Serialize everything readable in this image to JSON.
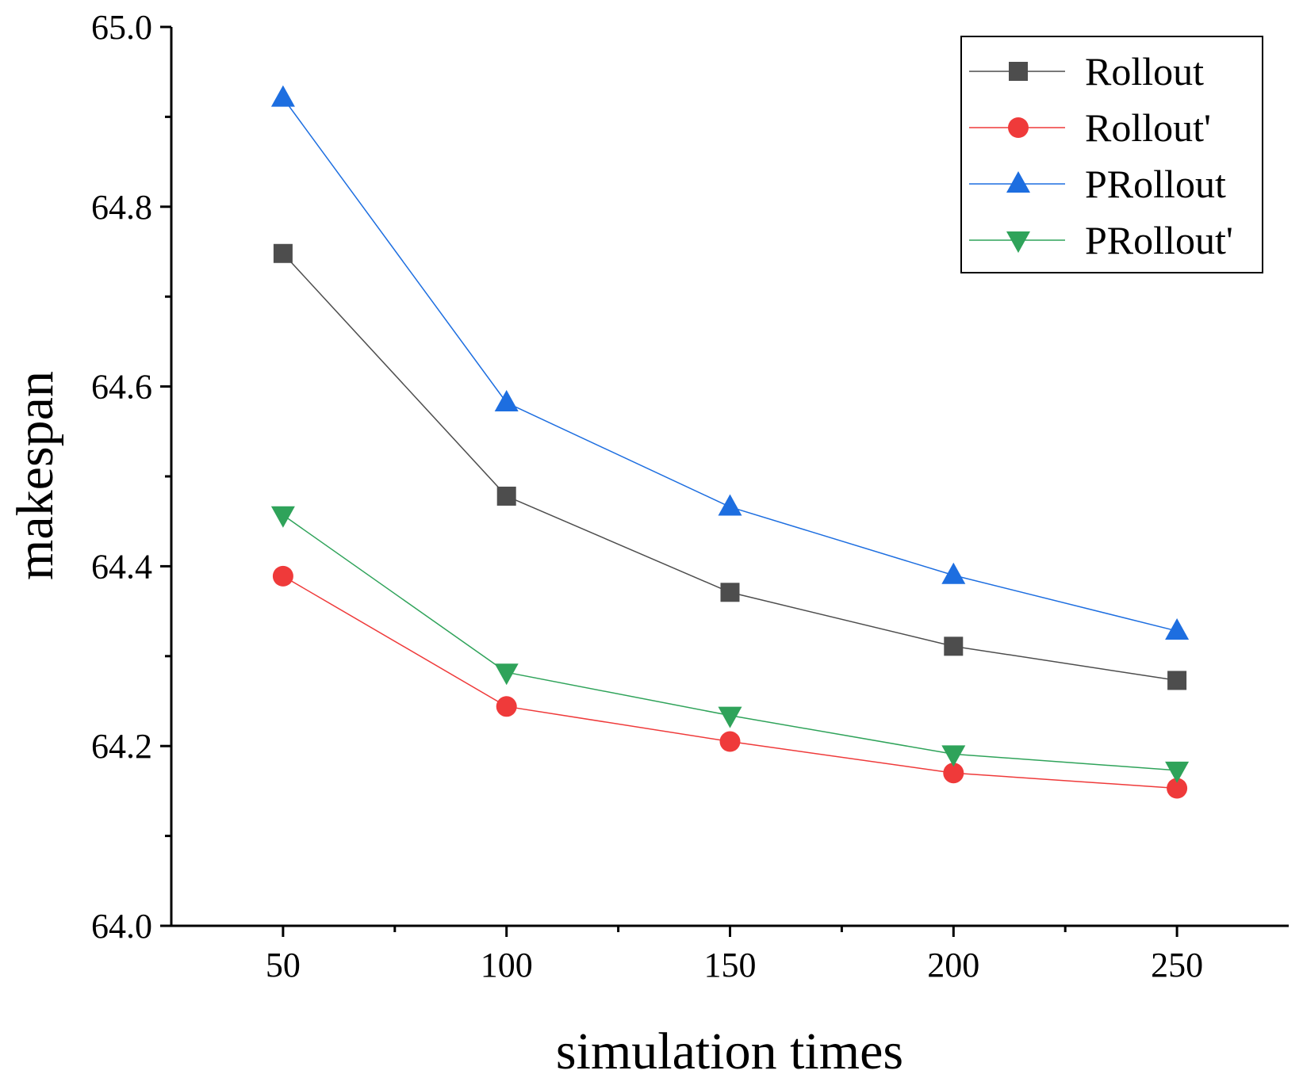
{
  "chart_data": {
    "type": "line",
    "title": "",
    "xlabel": "simulation times",
    "ylabel": "makespan",
    "x": [
      50,
      100,
      150,
      200,
      250
    ],
    "xlim": [
      25,
      275
    ],
    "ylim": [
      64.0,
      65.0
    ],
    "x_ticks": [
      50,
      100,
      150,
      200,
      250
    ],
    "y_ticks": [
      64.0,
      64.2,
      64.4,
      64.6,
      64.8,
      65.0
    ],
    "x_tick_labels": [
      "50",
      "100",
      "150",
      "200",
      "250"
    ],
    "y_tick_labels": [
      "64.0",
      "64.2",
      "64.4",
      "64.6",
      "64.8",
      "65.0"
    ],
    "grid": false,
    "legend_position": "top-right",
    "series": [
      {
        "name": "Rollout",
        "values": [
          64.748,
          64.478,
          64.371,
          64.311,
          64.273
        ],
        "color": "#4d4d4d",
        "marker": "square"
      },
      {
        "name": "Rollout'",
        "values": [
          64.389,
          64.244,
          64.205,
          64.17,
          64.153
        ],
        "color": "#ef3a3a",
        "marker": "circle"
      },
      {
        "name": "PRollout",
        "values": [
          64.921,
          64.582,
          64.466,
          64.39,
          64.328
        ],
        "color": "#1d6ee0",
        "marker": "triangle-up"
      },
      {
        "name": "PRollout'",
        "values": [
          64.457,
          64.282,
          64.234,
          64.191,
          64.173
        ],
        "color": "#2fa35a",
        "marker": "triangle-down"
      }
    ]
  }
}
